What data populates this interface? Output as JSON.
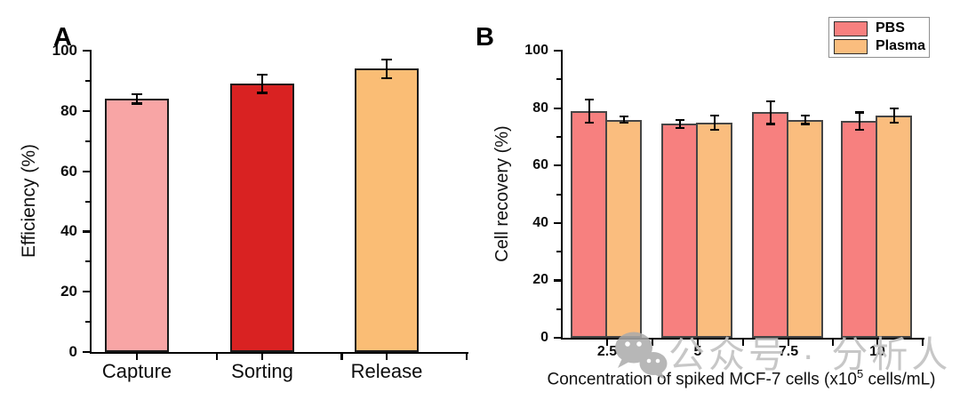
{
  "panel_labels": {
    "a": "A",
    "b": "B"
  },
  "chart_data": [
    {
      "id": "A",
      "type": "bar",
      "title": "",
      "categories": [
        "Capture",
        "Sorting",
        "Release"
      ],
      "values": [
        84,
        89,
        94
      ],
      "errors": [
        1.5,
        3,
        3
      ],
      "bar_colors": [
        "#F8A5A5",
        "#D92222",
        "#FABD75"
      ],
      "xlabel": "",
      "ylabel": "Efficiency (%)",
      "ylim": [
        0,
        100
      ],
      "yticks": [
        0,
        20,
        40,
        60,
        80,
        100
      ],
      "grid": false,
      "legend_position": "none"
    },
    {
      "id": "B",
      "type": "grouped-bar",
      "title": "",
      "categories": [
        "2.5",
        "5",
        "7.5",
        "10"
      ],
      "series": [
        {
          "name": "PBS",
          "color": "#F7807F",
          "values": [
            79,
            74.5,
            78.5,
            75.5
          ],
          "errors": [
            4,
            1.5,
            4,
            3
          ]
        },
        {
          "name": "Plasma",
          "color": "#FABD7E",
          "values": [
            76,
            75,
            76,
            77.5
          ],
          "errors": [
            1,
            2.5,
            1.5,
            2.5
          ]
        }
      ],
      "xlabel": "Concentration of spiked MCF-7 cells (x10^5 cells/mL)",
      "xlabel_parts": {
        "prefix": "Concentration of spiked MCF-7 cells (x10",
        "sup": "5",
        "suffix": " cells/mL)"
      },
      "ylabel": "Cell recovery (%)",
      "ylim": [
        0,
        100
      ],
      "yticks": [
        0,
        20,
        40,
        60,
        80,
        100
      ],
      "grid": false,
      "legend_position": "top-right"
    }
  ],
  "watermark": {
    "icon": "wechat-icon",
    "text": "公众号 · 分析人"
  }
}
